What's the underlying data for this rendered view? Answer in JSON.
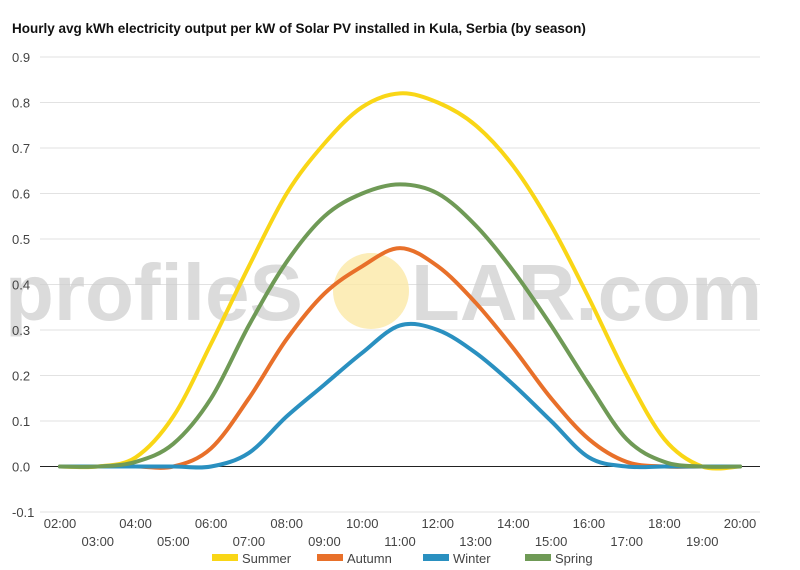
{
  "chart_data": {
    "type": "line",
    "title": "Hourly avg kWh electricity output per kW of Solar PV installed in Kula, Serbia (by season)",
    "xlabel": "",
    "ylabel": "",
    "ylim": [
      -0.1,
      0.9
    ],
    "yticks": [
      "0.9",
      "0.8",
      "0.7",
      "0.6",
      "0.5",
      "0.4",
      "0.3",
      "0.2",
      "0.1",
      "0.0",
      "-0.1"
    ],
    "ytick_values": [
      0.9,
      0.8,
      0.7,
      0.6,
      0.5,
      0.4,
      0.3,
      0.2,
      0.1,
      0.0,
      -0.1
    ],
    "categories": [
      "02:00",
      "03:00",
      "04:00",
      "05:00",
      "06:00",
      "07:00",
      "08:00",
      "09:00",
      "10:00",
      "11:00",
      "12:00",
      "13:00",
      "14:00",
      "15:00",
      "16:00",
      "17:00",
      "18:00",
      "19:00",
      "20:00"
    ],
    "grid": true,
    "legend": "bottom",
    "series": [
      {
        "name": "Summer",
        "color": "#f9d616",
        "values": [
          0,
          0,
          0.02,
          0.11,
          0.27,
          0.44,
          0.6,
          0.71,
          0.79,
          0.82,
          0.8,
          0.75,
          0.66,
          0.53,
          0.37,
          0.2,
          0.06,
          0.0,
          0
        ]
      },
      {
        "name": "Autumn",
        "color": "#e8702a",
        "values": [
          0,
          0,
          0,
          0,
          0.04,
          0.15,
          0.28,
          0.38,
          0.44,
          0.48,
          0.44,
          0.36,
          0.26,
          0.15,
          0.06,
          0.01,
          0,
          0,
          0
        ]
      },
      {
        "name": "Winter",
        "color": "#2a90c0",
        "values": [
          0,
          0,
          0,
          0,
          0,
          0.03,
          0.11,
          0.18,
          0.25,
          0.31,
          0.3,
          0.25,
          0.18,
          0.1,
          0.02,
          0,
          0,
          0,
          0
        ]
      },
      {
        "name": "Spring",
        "color": "#6f9a56",
        "values": [
          0,
          0,
          0.01,
          0.05,
          0.15,
          0.31,
          0.45,
          0.55,
          0.6,
          0.62,
          0.6,
          0.53,
          0.43,
          0.31,
          0.18,
          0.06,
          0.01,
          0,
          0
        ]
      }
    ]
  },
  "watermark": {
    "text_left": "profileS",
    "text_right": "LAR.com",
    "sun_color": "#fbe9a6"
  }
}
